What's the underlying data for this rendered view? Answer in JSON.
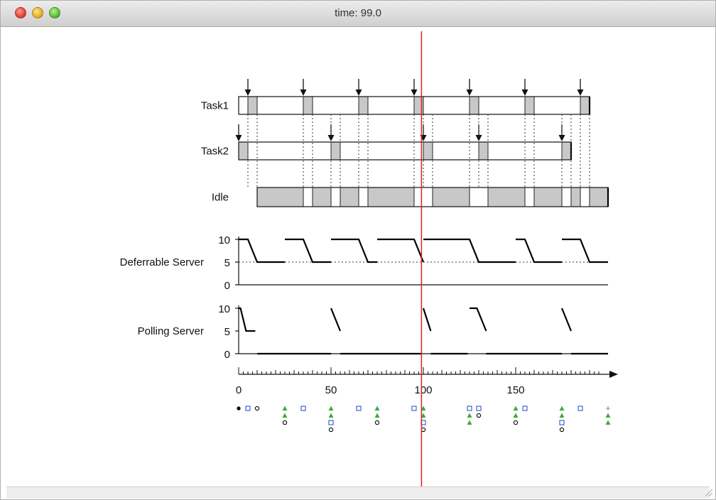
{
  "window": {
    "title": "time: 99.0"
  },
  "controls": {
    "stop_icon": "stop-icon",
    "play_icon": "play-icon"
  },
  "colors": {
    "cursor": "#e02020",
    "block_fill": "#c8c8c8",
    "green": "#3cab3c",
    "blue": "#3355cc"
  },
  "chart_data": {
    "type": "timeline",
    "cursor_time": 99.0,
    "time_axis": {
      "min": 0,
      "max": 200,
      "ticks": [
        0,
        50,
        100,
        150
      ]
    },
    "rows": [
      {
        "label": "Task1",
        "arrivals": [
          5,
          35,
          65,
          95,
          125,
          155,
          185
        ],
        "busy": [
          [
            5,
            10
          ],
          [
            35,
            40
          ],
          [
            65,
            70
          ],
          [
            95,
            100
          ],
          [
            125,
            130
          ],
          [
            155,
            160
          ],
          [
            185,
            190
          ]
        ]
      },
      {
        "label": "Task2",
        "arrivals": [
          0,
          50,
          100,
          130,
          175
        ],
        "busy": [
          [
            0,
            5
          ],
          [
            50,
            55
          ],
          [
            100,
            105
          ],
          [
            130,
            135
          ],
          [
            175,
            180
          ]
        ]
      },
      {
        "label": "Idle",
        "busy": [
          [
            10,
            35
          ],
          [
            40,
            50
          ],
          [
            55,
            65
          ],
          [
            70,
            95
          ],
          [
            105,
            125
          ],
          [
            135,
            155
          ],
          [
            160,
            175
          ],
          [
            180,
            185
          ],
          [
            190,
            200
          ]
        ]
      }
    ],
    "servers": [
      {
        "label": "Deferrable Server",
        "ylim": [
          0,
          10
        ],
        "yticks": [
          0,
          5,
          10
        ],
        "budget": [
          [
            [
              0,
              10
            ],
            [
              5,
              10
            ],
            [
              10,
              5
            ],
            [
              25,
              5
            ]
          ],
          [
            [
              25,
              10
            ],
            [
              35,
              10
            ],
            [
              40,
              5
            ],
            [
              50,
              5
            ]
          ],
          [
            [
              50,
              10
            ],
            [
              65,
              10
            ],
            [
              70,
              5
            ],
            [
              75,
              5
            ]
          ],
          [
            [
              75,
              10
            ],
            [
              95,
              10
            ],
            [
              100,
              5
            ]
          ],
          [
            [
              100,
              10
            ],
            [
              125,
              10
            ],
            [
              130,
              5
            ],
            [
              150,
              5
            ]
          ],
          [
            [
              150,
              10
            ],
            [
              155,
              10
            ],
            [
              160,
              5
            ],
            [
              175,
              5
            ]
          ],
          [
            [
              175,
              10
            ],
            [
              185,
              10
            ],
            [
              190,
              5
            ],
            [
              200,
              5
            ]
          ]
        ],
        "reference_level": 5
      },
      {
        "label": "Polling Server",
        "ylim": [
          0,
          10
        ],
        "yticks": [
          0,
          5,
          10
        ],
        "budget": [
          [
            [
              0,
              10
            ],
            [
              1,
              10
            ],
            [
              4,
              5
            ],
            [
              9,
              5
            ]
          ],
          [
            [
              50,
              10
            ],
            [
              55,
              5
            ]
          ],
          [
            [
              100,
              10
            ],
            [
              104,
              5
            ]
          ],
          [
            [
              125,
              10
            ],
            [
              129,
              10
            ],
            [
              134,
              5
            ]
          ],
          [
            [
              175,
              10
            ],
            [
              180,
              5
            ]
          ],
          [
            [
              10,
              0
            ],
            [
              50,
              0
            ]
          ],
          [
            [
              55,
              0
            ],
            [
              99,
              0
            ]
          ],
          [
            [
              104,
              0
            ],
            [
              124,
              0
            ]
          ],
          [
            [
              134,
              0
            ],
            [
              175,
              0
            ]
          ],
          [
            [
              180,
              0
            ],
            [
              200,
              0
            ]
          ]
        ]
      }
    ],
    "events": [
      {
        "x": 0,
        "marks": [
          "dot-black"
        ]
      },
      {
        "x": 5,
        "marks": [
          "square-blue"
        ]
      },
      {
        "x": 10,
        "marks": [
          "circle"
        ]
      },
      {
        "x": 25,
        "marks": [
          "triangle-green",
          "triangle-green",
          "circle"
        ]
      },
      {
        "x": 35,
        "marks": [
          "square-blue"
        ]
      },
      {
        "x": 50,
        "marks": [
          "triangle-green",
          "triangle-green",
          "square-blue",
          "circle"
        ]
      },
      {
        "x": 65,
        "marks": [
          "square-blue"
        ]
      },
      {
        "x": 75,
        "marks": [
          "triangle-green",
          "triangle-green",
          "circle"
        ]
      },
      {
        "x": 95,
        "marks": [
          "square-blue"
        ]
      },
      {
        "x": 100,
        "marks": [
          "triangle-green",
          "triangle-green",
          "square-blue",
          "circle"
        ]
      },
      {
        "x": 125,
        "marks": [
          "square-blue",
          "triangle-green",
          "triangle-green"
        ]
      },
      {
        "x": 130,
        "marks": [
          "square-blue",
          "circle"
        ]
      },
      {
        "x": 150,
        "marks": [
          "triangle-green",
          "triangle-green",
          "circle"
        ]
      },
      {
        "x": 155,
        "marks": [
          "square-blue"
        ]
      },
      {
        "x": 175,
        "marks": [
          "triangle-green",
          "triangle-green",
          "square-blue",
          "circle"
        ]
      },
      {
        "x": 185,
        "marks": [
          "square-blue"
        ]
      },
      {
        "x": 200,
        "marks": [
          "plus-gray",
          "triangle-green",
          "triangle-green"
        ]
      }
    ]
  }
}
